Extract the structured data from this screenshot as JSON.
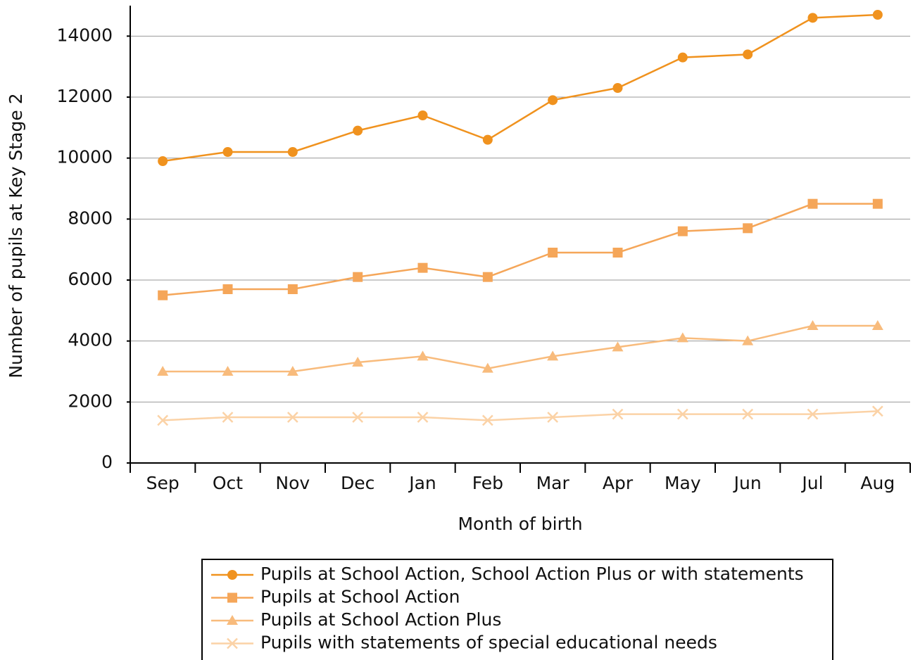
{
  "chart_data": {
    "type": "line",
    "xlabel": "Month of birth",
    "ylabel": "Number of pupils at Key Stage 2",
    "categories": [
      "Sep",
      "Oct",
      "Nov",
      "Dec",
      "Jan",
      "Feb",
      "Mar",
      "Apr",
      "May",
      "Jun",
      "Jul",
      "Aug"
    ],
    "series": [
      {
        "name": "Pupils at School Action, School Action Plus or with statements",
        "color": "#f0921e",
        "marker": "circle",
        "values": [
          9900,
          10200,
          10200,
          10900,
          11400,
          10600,
          11900,
          12300,
          13300,
          13400,
          14600,
          14700
        ]
      },
      {
        "name": "Pupils at School Action",
        "color": "#f5a659",
        "marker": "square",
        "values": [
          5500,
          5700,
          5700,
          6100,
          6400,
          6100,
          6900,
          6900,
          7600,
          7700,
          8500,
          8500
        ]
      },
      {
        "name": "Pupils at School Action Plus",
        "color": "#f8bb7c",
        "marker": "triangle",
        "values": [
          3000,
          3000,
          3000,
          3300,
          3500,
          3100,
          3500,
          3800,
          4100,
          4000,
          4500,
          4500
        ]
      },
      {
        "name": "Pupils with statements of special educational needs",
        "color": "#fbd2a6",
        "marker": "x",
        "values": [
          1400,
          1500,
          1500,
          1500,
          1500,
          1400,
          1500,
          1600,
          1600,
          1600,
          1600,
          1700
        ]
      }
    ],
    "ylim": [
      0,
      15000
    ],
    "yticks": [
      0,
      2000,
      4000,
      6000,
      8000,
      10000,
      12000,
      14000
    ],
    "grid": true
  }
}
